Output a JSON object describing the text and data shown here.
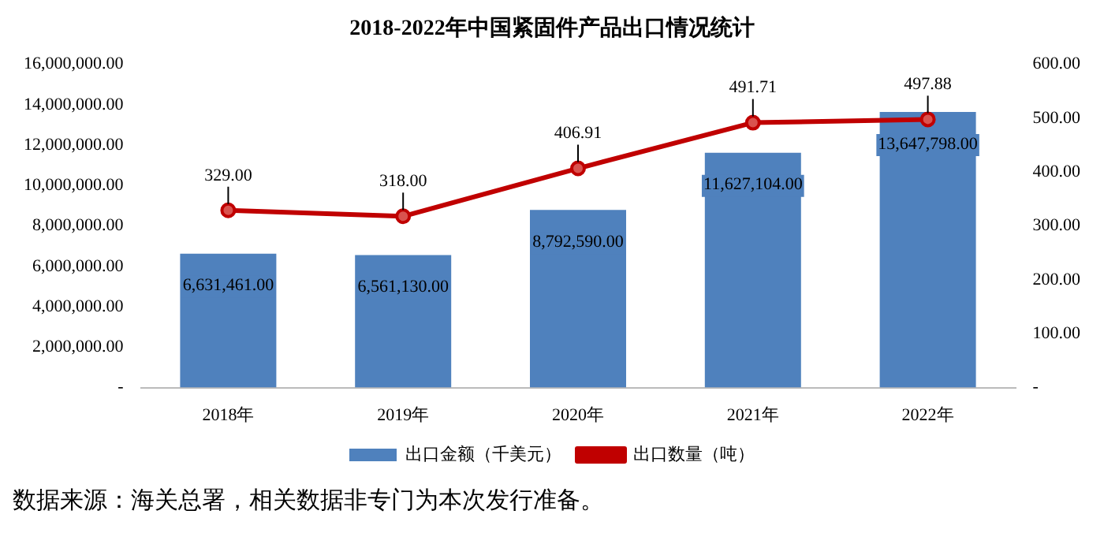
{
  "chart_data": {
    "type": "bar",
    "title": "2018-2022年中国紧固件产品出口情况统计",
    "categories": [
      "2018年",
      "2019年",
      "2020年",
      "2021年",
      "2022年"
    ],
    "series": [
      {
        "name": "出口金额（千美元）",
        "color": "#4f81bd",
        "values": [
          6631461,
          6561130,
          8792590,
          11627104,
          13647798
        ],
        "value_labels": [
          "6,631,461.00",
          "6,561,130.00",
          "8,792,590.00",
          "11,627,104.00",
          "13,647,798.00"
        ]
      },
      {
        "name": "出口数量（吨）",
        "type": "line",
        "axis": "y2",
        "color": "#c00000",
        "values": [
          329,
          318,
          406.91,
          491.71,
          497.88
        ],
        "value_labels": [
          "329.00",
          "318.00",
          "406.91",
          "491.71",
          "497.88"
        ]
      }
    ],
    "ylim": [
      0,
      16000000
    ],
    "yticks": [
      {
        "value": 0,
        "label": "-"
      },
      {
        "value": 2000000,
        "label": "2,000,000.00"
      },
      {
        "value": 4000000,
        "label": "4,000,000.00"
      },
      {
        "value": 6000000,
        "label": "6,000,000.00"
      },
      {
        "value": 8000000,
        "label": "8,000,000.00"
      },
      {
        "value": 10000000,
        "label": "10,000,000.00"
      },
      {
        "value": 12000000,
        "label": "12,000,000.00"
      },
      {
        "value": 14000000,
        "label": "14,000,000.00"
      },
      {
        "value": 16000000,
        "label": "16,000,000.00"
      }
    ],
    "y2lim": [
      0,
      600
    ],
    "y2ticks": [
      {
        "value": 0,
        "label": "-"
      },
      {
        "value": 100,
        "label": "100.00"
      },
      {
        "value": 200,
        "label": "200.00"
      },
      {
        "value": 300,
        "label": "300.00"
      },
      {
        "value": 400,
        "label": "400.00"
      },
      {
        "value": 500,
        "label": "500.00"
      },
      {
        "value": 600,
        "label": "600.00"
      }
    ],
    "grid": false,
    "legend": "bottom",
    "marker": "circle",
    "line_style": "solid",
    "annotations": [
      "数据来源：海关总署，相关数据非专门为本次发行准备。"
    ]
  }
}
